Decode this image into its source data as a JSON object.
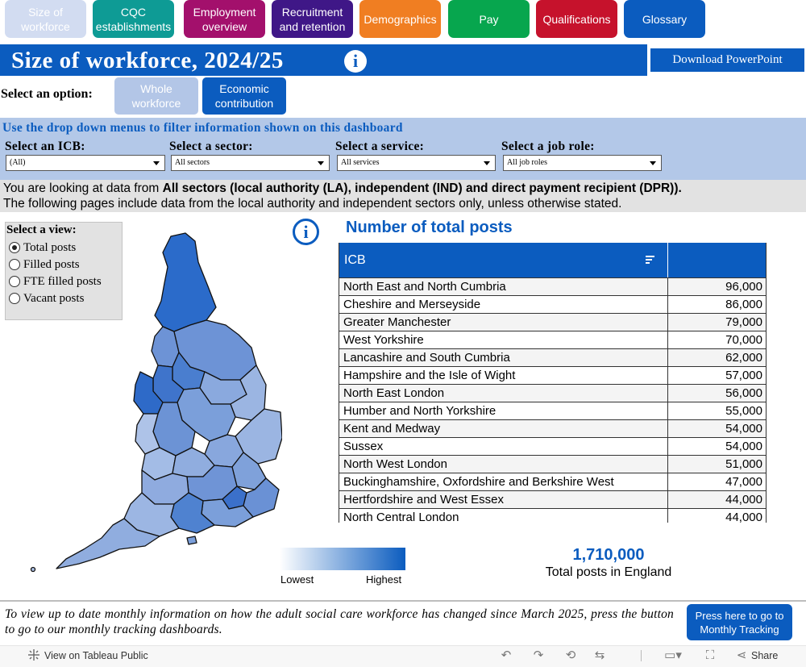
{
  "nav": [
    {
      "label": "Size of\nworkforce",
      "bg": "#d2dcf1",
      "fg": "#ffffff"
    },
    {
      "label": "CQC\nestablishments",
      "bg": "#0e9b95",
      "fg": "#ffffff"
    },
    {
      "label": "Employment\noverview",
      "bg": "#a3106c",
      "fg": "#ffffff"
    },
    {
      "label": "Recruitment\nand retention",
      "bg": "#3f1787",
      "fg": "#ffffff"
    },
    {
      "label": "Demographics",
      "bg": "#f07e22",
      "fg": "#ffffff"
    },
    {
      "label": "Pay",
      "bg": "#07a64e",
      "fg": "#ffffff"
    },
    {
      "label": "Qualifications",
      "bg": "#c6122c",
      "fg": "#ffffff"
    },
    {
      "label": "Glossary",
      "bg": "#0b5cbf",
      "fg": "#ffffff"
    }
  ],
  "header": {
    "title": "Size of workforce, 2024/25",
    "info_icon": "i",
    "download_label": "Download PowerPoint"
  },
  "options": {
    "prompt": "Select an option:",
    "buttons": [
      {
        "label": "Whole\nworkforce",
        "selected": true
      },
      {
        "label": "Economic\ncontribution",
        "selected": false
      }
    ]
  },
  "filters": {
    "hint": "Use the drop down menus to filter information shown on this dashboard",
    "icb": {
      "label": "Select an ICB:",
      "value": "(All)"
    },
    "sector": {
      "label": "Select a sector:",
      "value": "All sectors"
    },
    "service": {
      "label": "Select a service:",
      "value": "All services"
    },
    "job_role": {
      "label": "Select a job role:",
      "value": "All job roles"
    }
  },
  "info": {
    "line1_prefix": "You are looking at data from ",
    "line1_bold": "All sectors (local authority (LA), independent (IND) and direct payment recipient (DPR)).",
    "line2": "The following pages include data from the local authority and independent sectors only, unless otherwise stated."
  },
  "view": {
    "title": "Select a view:",
    "options": [
      {
        "label": "Total posts",
        "checked": true
      },
      {
        "label": "Filled posts",
        "checked": false
      },
      {
        "label": "FTE filled posts",
        "checked": false
      },
      {
        "label": "Vacant posts",
        "checked": false
      }
    ]
  },
  "map": {
    "info_icon": "i",
    "legend_low": "Lowest",
    "legend_high": "Highest",
    "color_low": "#ffffff",
    "color_high": "#0b5cbf"
  },
  "table": {
    "title": "Number of total posts",
    "column_header": "ICB",
    "rows": [
      {
        "name": "North East and North Cumbria",
        "value": "96,000"
      },
      {
        "name": "Cheshire and Merseyside",
        "value": "86,000"
      },
      {
        "name": "Greater Manchester",
        "value": "79,000"
      },
      {
        "name": "West Yorkshire",
        "value": "70,000"
      },
      {
        "name": "Lancashire and South Cumbria",
        "value": "62,000"
      },
      {
        "name": "Hampshire and the Isle of Wight",
        "value": "57,000"
      },
      {
        "name": "North East London",
        "value": "56,000"
      },
      {
        "name": "Humber and North Yorkshire",
        "value": "55,000"
      },
      {
        "name": "Kent and Medway",
        "value": "54,000"
      },
      {
        "name": "Sussex",
        "value": "54,000"
      },
      {
        "name": "North West London",
        "value": "51,000"
      },
      {
        "name": "Buckinghamshire, Oxfordshire and Berkshire West",
        "value": "47,000"
      },
      {
        "name": "Hertfordshire and West Essex",
        "value": "44,000"
      },
      {
        "name": "North Central London",
        "value": "44,000"
      }
    ]
  },
  "total": {
    "value": "1,710,000",
    "label": "Total posts in England"
  },
  "footer": {
    "note": "To view up to date monthly information on how the adult social care workforce has changed since March 2025, press the button to go to our monthly tracking dashboards.",
    "track_button": "Press here to go to\nMonthly Tracking"
  },
  "toolbar": {
    "view_on": "View on Tableau Public",
    "share": "Share"
  }
}
